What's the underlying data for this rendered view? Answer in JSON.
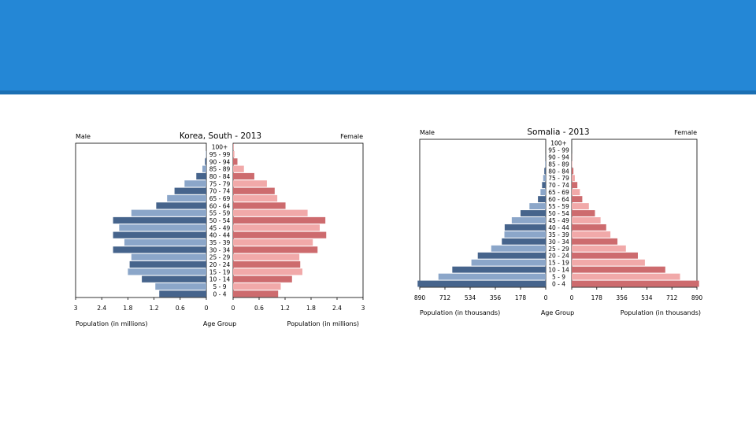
{
  "colors": {
    "banner": "#2487d6",
    "banner_rule": "#1b6fb3",
    "male_dark": "#46648c",
    "male_light": "#8ba6c9",
    "female_dark": "#cd6b6e",
    "female_light": "#f1a9a9"
  },
  "chart_data": [
    {
      "type": "bar",
      "orientation": "horizontal-pyramid",
      "title": "Korea, South - 2013",
      "left_label": "Male",
      "right_label": "Female",
      "center_axis_label": "Age Group",
      "xlabel_left": "Population (in millions)",
      "xlabel_right": "Population (in millions)",
      "xlim": [
        0,
        3
      ],
      "ticks_left": [
        "3",
        "2.4",
        "1.8",
        "1.2",
        "0.6",
        "0"
      ],
      "ticks_right": [
        "0",
        "0.6",
        "1.2",
        "1.8",
        "2.4",
        "3"
      ],
      "tick_values_left": [
        3,
        2.4,
        1.8,
        1.2,
        0.6,
        0
      ],
      "tick_values_right": [
        0,
        0.6,
        1.2,
        1.8,
        2.4,
        3
      ],
      "categories": [
        "100+",
        "95 - 99",
        "90 - 94",
        "85 - 89",
        "80 - 84",
        "75 - 79",
        "70 - 74",
        "65 - 69",
        "60 - 64",
        "55 - 59",
        "50 - 54",
        "45 - 49",
        "40 - 44",
        "35 - 39",
        "30 - 34",
        "25 - 29",
        "20 - 24",
        "15 - 19",
        "10 - 14",
        "5 - 9",
        "0 - 4"
      ],
      "series": [
        {
          "name": "Male",
          "values": [
            0,
            0.01,
            0.03,
            0.09,
            0.23,
            0.5,
            0.73,
            0.9,
            1.15,
            1.72,
            2.14,
            2.0,
            2.14,
            1.88,
            2.14,
            1.72,
            1.76,
            1.8,
            1.48,
            1.17,
            1.08
          ]
        },
        {
          "name": "Female",
          "values": [
            0.01,
            0.03,
            0.1,
            0.25,
            0.49,
            0.78,
            0.96,
            1.02,
            1.21,
            1.72,
            2.13,
            2.0,
            2.15,
            1.84,
            1.95,
            1.53,
            1.55,
            1.6,
            1.36,
            1.1,
            1.04
          ]
        }
      ]
    },
    {
      "type": "bar",
      "orientation": "horizontal-pyramid",
      "title": "Somalia - 2013",
      "left_label": "Male",
      "right_label": "Female",
      "center_axis_label": "Age Group",
      "xlabel_left": "Population (in thousands)",
      "xlabel_right": "Population (in thousands)",
      "xlim": [
        0,
        890
      ],
      "ticks_left": [
        "890",
        "712",
        "534",
        "356",
        "178",
        "0"
      ],
      "ticks_right": [
        "0",
        "178",
        "356",
        "534",
        "712",
        "890"
      ],
      "tick_values_left": [
        890,
        712,
        534,
        356,
        178,
        0
      ],
      "tick_values_right": [
        0,
        178,
        356,
        534,
        712,
        890
      ],
      "categories": [
        "100+",
        "95 - 99",
        "90 - 94",
        "85 - 89",
        "80 - 84",
        "75 - 79",
        "70 - 74",
        "65 - 69",
        "60 - 64",
        "55 - 59",
        "50 - 54",
        "45 - 49",
        "40 - 44",
        "35 - 39",
        "30 - 34",
        "25 - 29",
        "20 - 24",
        "15 - 19",
        "10 - 14",
        "5 - 9",
        "0 - 4"
      ],
      "series": [
        {
          "name": "Male",
          "values": [
            0,
            0,
            1,
            4,
            10,
            18,
            26,
            37,
            55,
            115,
            178,
            240,
            290,
            292,
            310,
            385,
            480,
            525,
            660,
            758,
            905
          ]
        },
        {
          "name": "Female",
          "values": [
            0,
            0,
            1,
            4,
            12,
            22,
            40,
            58,
            75,
            122,
            165,
            205,
            245,
            275,
            325,
            385,
            470,
            520,
            665,
            770,
            905
          ]
        }
      ]
    }
  ]
}
